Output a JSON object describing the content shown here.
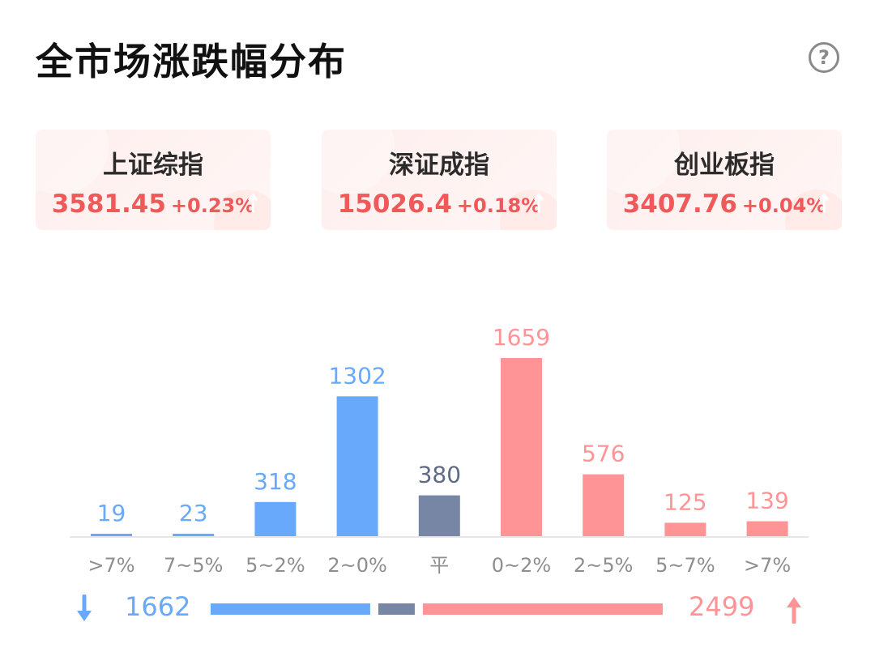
{
  "header": {
    "title": "全市场涨跌幅分布",
    "help_icon": "?"
  },
  "indices": [
    {
      "name": "上证综指",
      "price": "3581.45",
      "change": "+0.23%"
    },
    {
      "name": "深证成指",
      "price": "15026.4",
      "change": "+0.18%"
    },
    {
      "name": "创业板指",
      "price": "3407.76",
      "change": "+0.04%"
    }
  ],
  "colors": {
    "down": "#68a9fb",
    "flat": "#7686a4",
    "up": "#ff9496",
    "up_text": "#f0595a"
  },
  "chart_data": {
    "type": "bar",
    "categories": [
      ">7%",
      "7~5%",
      "5~2%",
      "2~0%",
      "平",
      "0~2%",
      "2~5%",
      "5~7%",
      ">7%"
    ],
    "values": [
      19,
      23,
      318,
      1302,
      380,
      1659,
      576,
      125,
      139
    ],
    "groups": [
      "down",
      "down",
      "down",
      "down",
      "flat",
      "up",
      "up",
      "up",
      "up"
    ],
    "title": "全市场涨跌幅分布",
    "xlabel": "",
    "ylabel": ""
  },
  "summary": {
    "down_count": "1662",
    "up_count": "2499",
    "down_total": 1662,
    "flat_total": 380,
    "up_total": 2499,
    "down_icon": "arrow-down-icon",
    "up_icon": "arrow-up-icon"
  }
}
